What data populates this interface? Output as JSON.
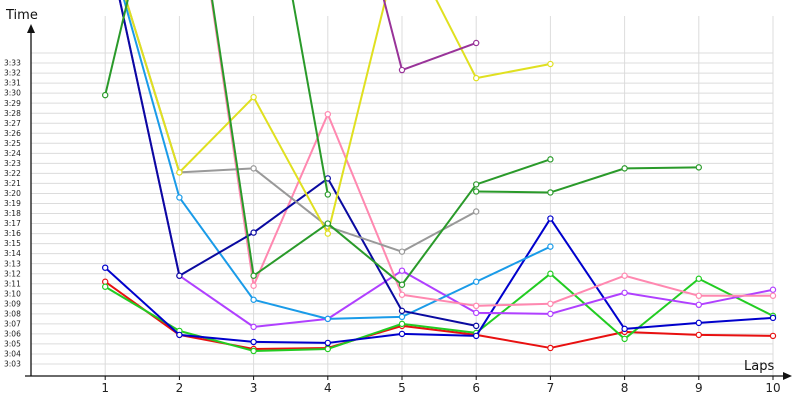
{
  "chart_data": {
    "type": "line",
    "ylabel": "Time",
    "xlabel": "Laps",
    "x": [
      1,
      2,
      3,
      4,
      5,
      6,
      7,
      8,
      9,
      10
    ],
    "xlim": [
      0,
      10
    ],
    "ylim": [
      182,
      213
    ],
    "grid": true,
    "yticks": [
      "3:03",
      "3:04",
      "3:05",
      "3:06",
      "3:07",
      "3:08",
      "3:09",
      "3:10",
      "3:11",
      "3:12",
      "3:13",
      "3:14",
      "3:15",
      "3:16",
      "3:17",
      "3:18",
      "3:19",
      "3:20",
      "3:21",
      "3:22",
      "3:23",
      "3:24",
      "3:25",
      "3:26",
      "3:27",
      "3:28",
      "3:29",
      "3:30",
      "3:31",
      "3:32",
      "3:33"
    ],
    "series": [
      {
        "color": "#e81010",
        "values": [
          190.2,
          184.9,
          183.5,
          183.6,
          185.8,
          184.9,
          183.6,
          185.2,
          184.9,
          184.8
        ]
      },
      {
        "color": "#22cc22",
        "values": [
          189.7,
          185.3,
          183.3,
          183.5,
          186.0,
          185.1,
          191.0,
          184.5,
          190.5,
          186.8
        ]
      },
      {
        "color": "#0000cc",
        "values": [
          191.6,
          184.9,
          184.2,
          184.1,
          185.0,
          184.8,
          196.5,
          185.5,
          186.1,
          186.6
        ]
      },
      {
        "color": "#b040ff",
        "values": [
          225.0,
          190.8,
          185.7,
          186.5,
          191.3,
          187.1,
          187.0,
          189.1,
          187.9,
          189.4
        ]
      },
      {
        "color": "#1a9be8",
        "values": [
          225.0,
          198.6,
          188.4,
          186.5,
          186.7,
          190.2,
          193.7,
          null,
          null,
          null
        ]
      },
      {
        "color": "#ff88b0",
        "values": [
          null,
          240.0,
          189.8,
          206.9,
          188.9,
          187.8,
          188.0,
          190.8,
          188.8,
          188.8
        ]
      },
      {
        "color": "#0a0aa0",
        "values": [
          225.0,
          190.8,
          195.1,
          200.5,
          187.3,
          185.8,
          null,
          null,
          null,
          null
        ]
      },
      {
        "color": "#999999",
        "values": [
          225.0,
          201.1,
          201.5,
          195.7,
          193.2,
          197.2,
          null,
          null,
          null,
          null
        ]
      },
      {
        "color": "#e0e020",
        "values": [
          225.0,
          201.1,
          208.6,
          195.0,
          225.0,
          210.5,
          211.9,
          null,
          null,
          null
        ]
      },
      {
        "color": "#2a9a2a",
        "values": [
          208.8,
          240.0,
          190.8,
          196.0,
          189.9,
          199.9,
          202.4,
          null,
          null,
          null
        ]
      },
      {
        "color": "#2a9a2a",
        "values": [
          null,
          null,
          240.0,
          198.9,
          null,
          199.2,
          199.1,
          201.5,
          201.6,
          null
        ]
      },
      {
        "color": "#993399",
        "values": [
          null,
          null,
          null,
          240.0,
          211.3,
          214.0,
          null,
          null,
          null,
          null
        ]
      }
    ]
  }
}
